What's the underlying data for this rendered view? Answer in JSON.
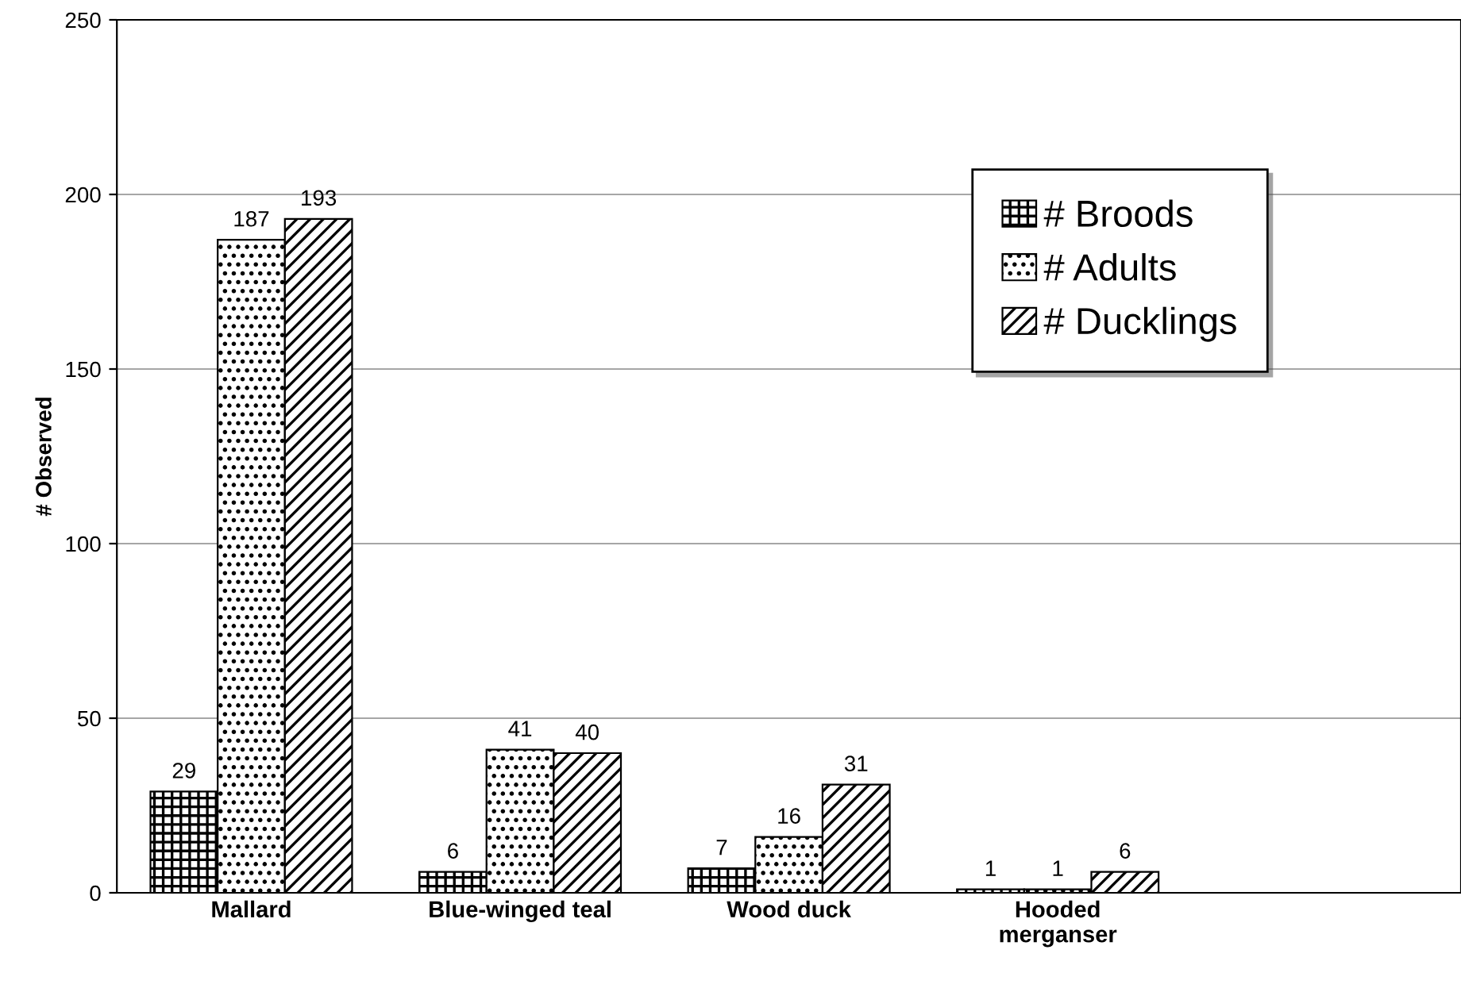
{
  "chart_data": {
    "type": "bar",
    "ylabel": "# Observed",
    "categories": [
      "Mallard",
      "Blue-winged teal",
      "Wood duck",
      "Hooded\nmerganser",
      null
    ],
    "series": [
      {
        "name": "# Broods",
        "color": "#000000",
        "values": [
          29,
          6,
          7,
          1,
          null
        ]
      },
      {
        "name": "# Adults",
        "color": "#000000",
        "values": [
          187,
          41,
          16,
          1,
          null
        ]
      },
      {
        "name": "# Ducklings",
        "color": "#000000",
        "values": [
          193,
          40,
          31,
          6,
          null
        ]
      }
    ],
    "ylim": [
      0,
      250
    ],
    "yticks": [
      0,
      50,
      100,
      150,
      200,
      250
    ],
    "grid": "y",
    "legend": "top right",
    "data_labels": true
  }
}
